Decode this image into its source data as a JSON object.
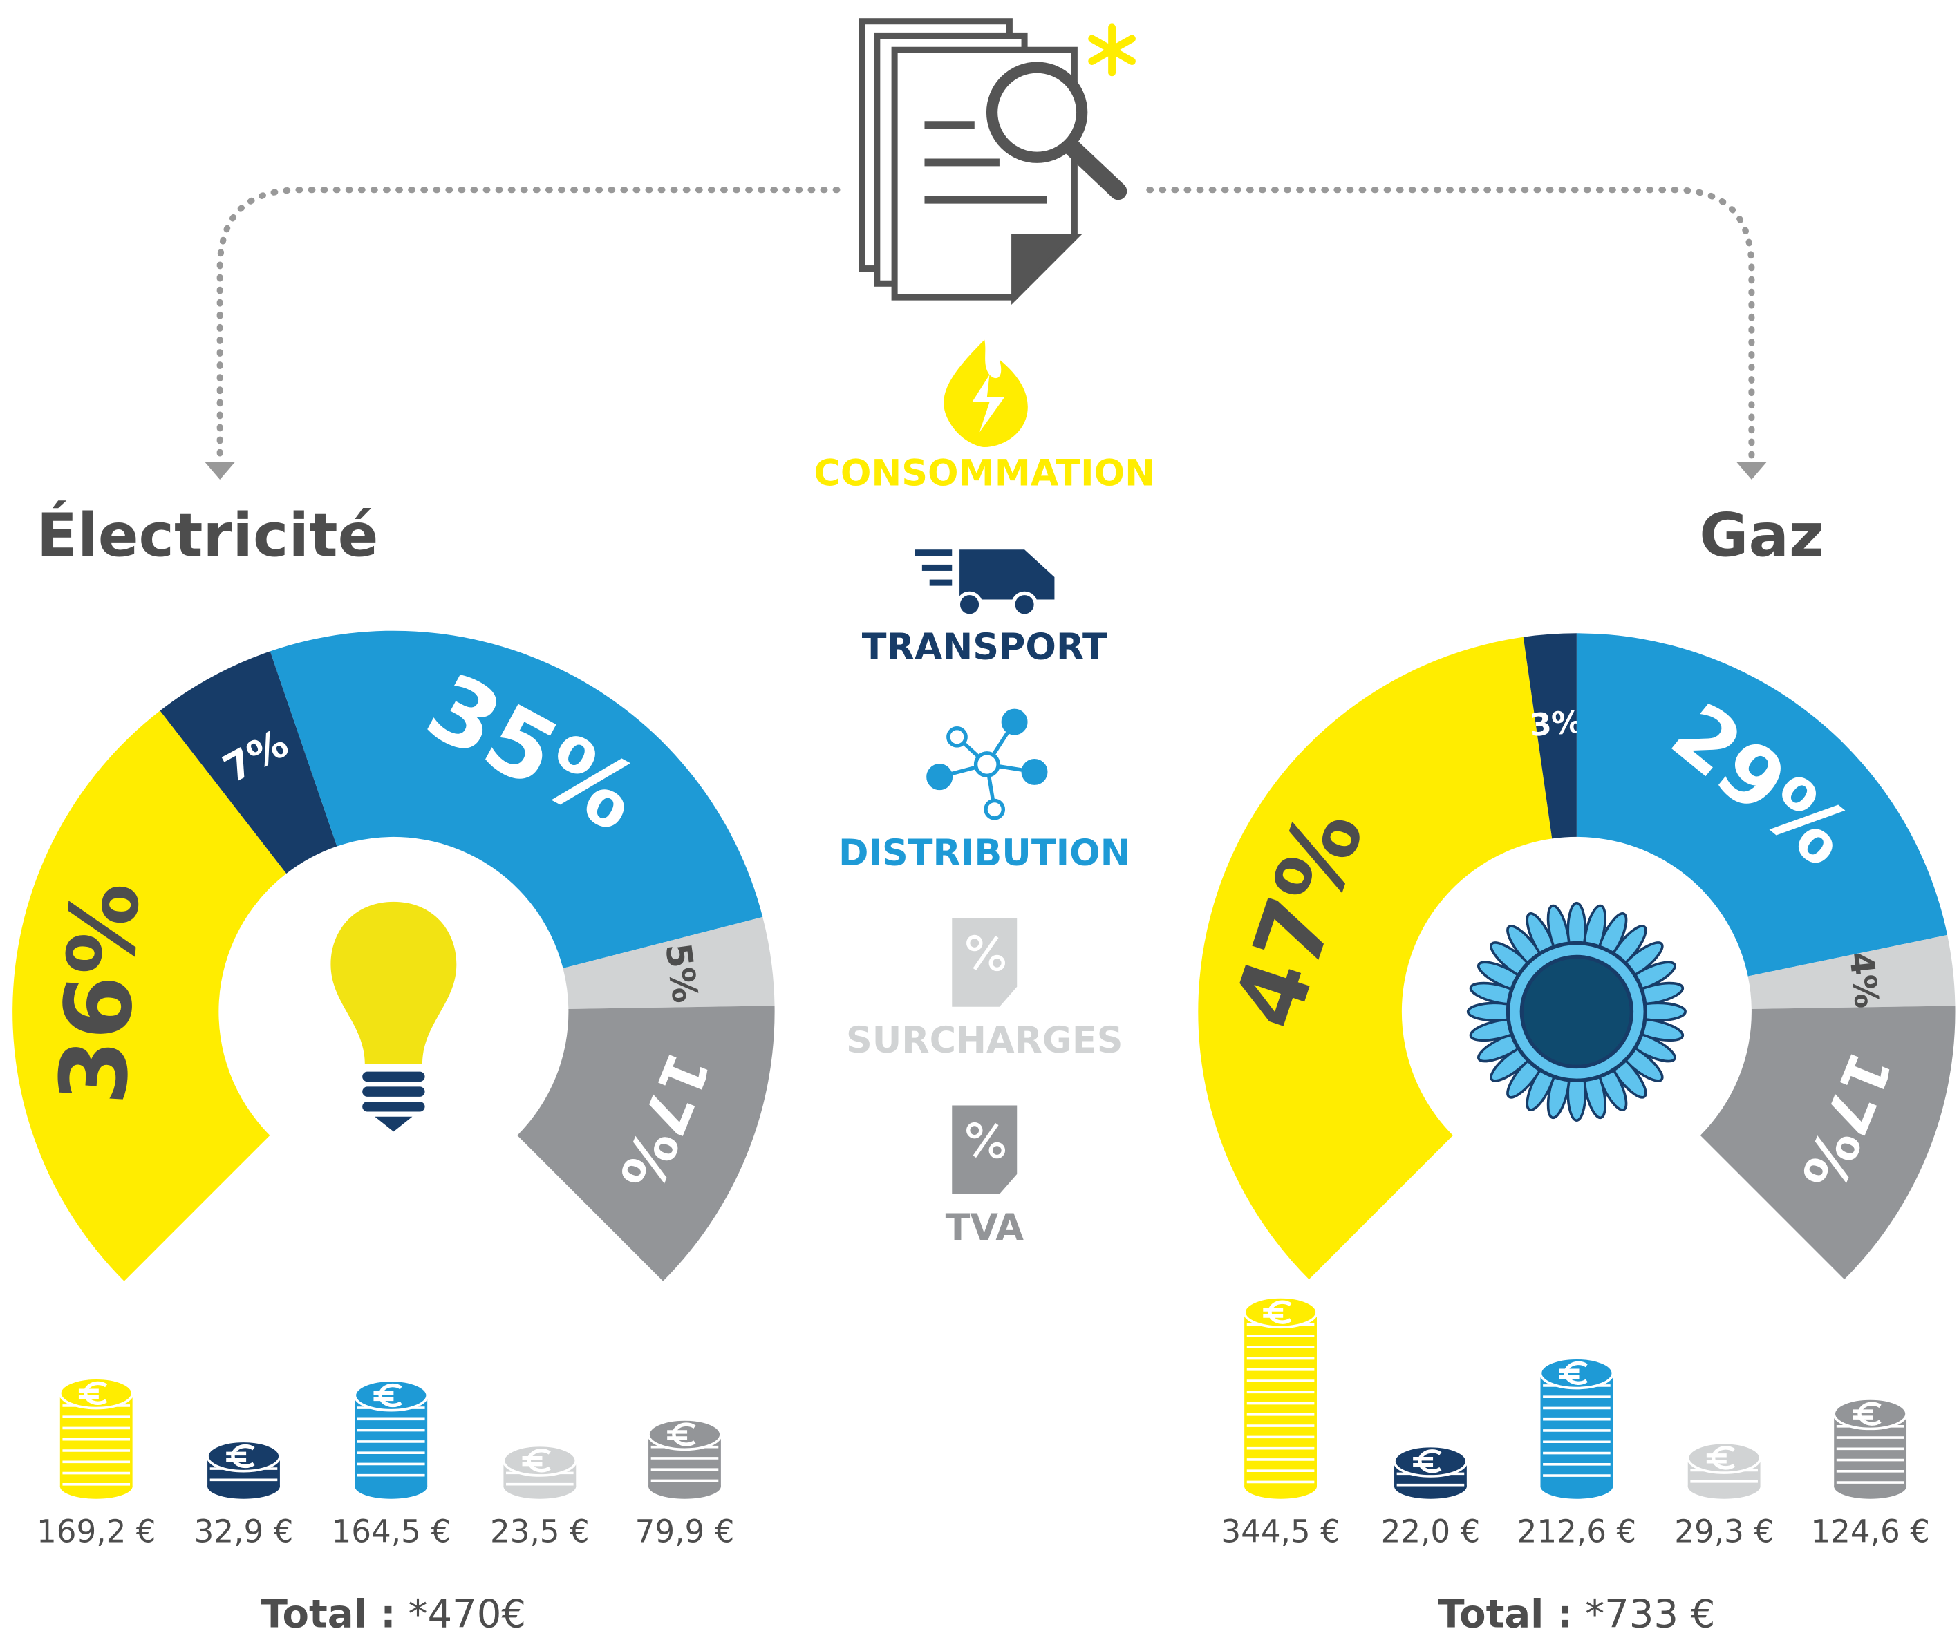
{
  "chart_data": [
    {
      "type": "gauge",
      "title": "Électricité",
      "values": [
        36,
        7,
        35,
        5,
        17
      ],
      "value_labels": [
        "36%",
        "7%",
        "35%",
        "5%",
        "17%"
      ],
      "colors": [
        "#ffed00",
        "#173c68",
        "#1e9ad6",
        "#d1d3d4",
        "#939598"
      ],
      "amounts": [
        169.2,
        32.9,
        164.5,
        23.5,
        79.9
      ],
      "amount_labels": [
        "169,2 €",
        "32,9 €",
        "164,5 €",
        "23,5 €",
        "79,9 €"
      ],
      "total": {
        "label": "Total :",
        "value": "*470€"
      }
    },
    {
      "type": "gauge",
      "title": "Gaz",
      "values": [
        47,
        3,
        29,
        4,
        17
      ],
      "value_labels": [
        "47%",
        "3%",
        "29%",
        "4%",
        "17%"
      ],
      "colors": [
        "#ffed00",
        "#173c68",
        "#1e9ad6",
        "#d1d3d4",
        "#939598"
      ],
      "amounts": [
        344.5,
        22.0,
        212.6,
        29.3,
        124.6
      ],
      "amount_labels": [
        "344,5 €",
        "22,0 €",
        "212,6 €",
        "29,3 €",
        "124,6 €"
      ],
      "total": {
        "label": "Total :",
        "value": "*733 €"
      }
    }
  ],
  "legend": {
    "items": [
      {
        "label": "CONSOMMATION",
        "color": "#ffed00"
      },
      {
        "label": "TRANSPORT",
        "color": "#173c68"
      },
      {
        "label": "DISTRIBUTION",
        "color": "#1e9ad6"
      },
      {
        "label": "SURCHARGES",
        "color": "#d1d3d4"
      },
      {
        "label": "TVA",
        "color": "#939598"
      }
    ]
  }
}
